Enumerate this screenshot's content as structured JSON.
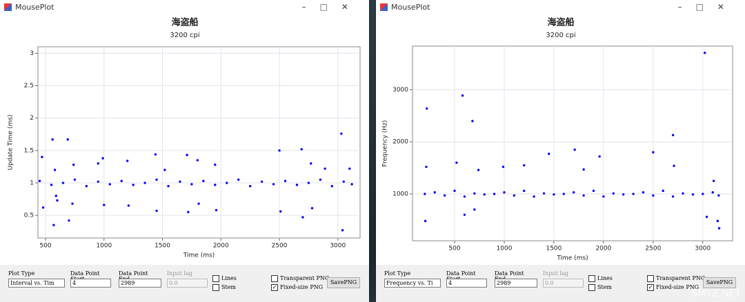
{
  "chart_data": [
    {
      "type": "scatter",
      "title": "海盗船",
      "subtitle": "3200 cpi",
      "x_label": "Time (ms)",
      "y_label": "Update Time (ms)",
      "color": "#0000ff",
      "grid": true,
      "xlim": [
        435,
        3190
      ],
      "ylim": [
        0.15,
        3.1
      ],
      "xticks": [
        500,
        1000,
        1500,
        2000,
        2500,
        3000
      ],
      "yticks": [
        0.5,
        1,
        1.5,
        2,
        2.5,
        3
      ],
      "x": [
        450,
        550,
        650,
        750,
        850,
        950,
        1050,
        1150,
        1250,
        1350,
        1450,
        1550,
        1650,
        1750,
        1850,
        1950,
        2050,
        2150,
        2250,
        2350,
        2450,
        2550,
        2650,
        2750,
        2850,
        2950,
        3050,
        3120,
        470,
        480,
        560,
        570,
        580,
        590,
        600,
        690,
        700,
        730,
        740,
        950,
        990,
        1000,
        1200,
        1210,
        1440,
        1450,
        1520,
        1710,
        1720,
        1800,
        1810,
        1950,
        1960,
        2500,
        2510,
        2690,
        2700,
        2770,
        2780,
        2890,
        3030,
        3040,
        3100
      ],
      "values": [
        1.03,
        0.97,
        1,
        1.05,
        0.95,
        1.02,
        0.98,
        1.03,
        0.97,
        1,
        1.05,
        0.95,
        1.02,
        0.98,
        1.03,
        0.97,
        1,
        1.05,
        0.95,
        1.02,
        0.98,
        1.03,
        0.97,
        1,
        1.05,
        0.95,
        1.02,
        0.98,
        1.4,
        0.62,
        1.67,
        0.35,
        1.2,
        0.8,
        0.73,
        1.67,
        0.42,
        0.68,
        1.28,
        1.3,
        1.38,
        0.66,
        1.34,
        0.65,
        1.44,
        0.57,
        1.2,
        1.43,
        0.55,
        1.35,
        0.68,
        1.28,
        0.58,
        1.5,
        0.56,
        1.52,
        0.47,
        1.3,
        0.61,
        1.22,
        1.76,
        0.27,
        1.22
      ]
    },
    {
      "type": "scatter",
      "title": "海盗船",
      "subtitle": "3200 cpi",
      "x_label": "Time (ms)",
      "y_label": "Frequency (Hz)",
      "color": "#0000ff",
      "grid": true,
      "xlim": [
        76,
        3300
      ],
      "ylim": [
        100,
        3840
      ],
      "xticks": [
        500,
        1000,
        1500,
        2000,
        2500,
        3000
      ],
      "yticks": [
        1000,
        2000,
        3000
      ],
      "x": [
        200,
        300,
        400,
        500,
        600,
        700,
        800,
        900,
        1000,
        1100,
        1200,
        1300,
        1400,
        1500,
        1600,
        1700,
        1800,
        1900,
        2000,
        2100,
        2200,
        2300,
        2400,
        2500,
        2600,
        2700,
        2800,
        2900,
        3000,
        3100,
        3160,
        215,
        220,
        205,
        520,
        580,
        600,
        680,
        700,
        740,
        990,
        1200,
        1450,
        1710,
        1800,
        1960,
        2500,
        2700,
        2710,
        3020,
        3040,
        3150,
        3165,
        3110
      ],
      "values": [
        1000,
        1030,
        970,
        1060,
        950,
        1010,
        990,
        1000,
        1030,
        970,
        1060,
        950,
        1010,
        990,
        1000,
        1030,
        970,
        1060,
        950,
        1010,
        990,
        1000,
        1030,
        970,
        1060,
        950,
        1010,
        990,
        1000,
        1030,
        970,
        1520,
        2640,
        480,
        1600,
        2890,
        600,
        2400,
        700,
        1460,
        1520,
        1550,
        1770,
        1850,
        1470,
        1720,
        1800,
        2130,
        1540,
        3710,
        560,
        480,
        340,
        1250
      ]
    }
  ],
  "windows": [
    {
      "title": "MousePlot",
      "plot_type_label": "Plot Type",
      "plot_type": "Interval vs. Tim",
      "start_label": "Data Point Start",
      "start": "4",
      "end_label": "Data Point End",
      "end": "2989",
      "lag_label": "Input lag",
      "lag": "0.0",
      "lines": "Lines",
      "stem": "Stem",
      "transparent": "Transparent PNG",
      "fixed": "Fixed-size PNG",
      "save": "SavePNG"
    },
    {
      "title": "MousePlot",
      "plot_type_label": "Plot Type",
      "plot_type": "Frequency vs. Ti",
      "start_label": "Data Point Start",
      "start": "4",
      "end_label": "Data Point End",
      "end": "2989",
      "lag_label": "Input lag",
      "lag": "0.0",
      "lines": "Lines",
      "stem": "Stem",
      "transparent": "Transparent PNG",
      "fixed": "Fixed-size PNG",
      "save": "SavePNG"
    }
  ],
  "watermark": "SMYZ.NET"
}
